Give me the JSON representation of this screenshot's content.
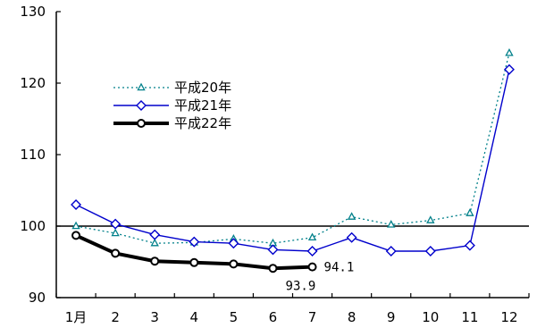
{
  "chart_data": {
    "type": "line",
    "categories": [
      "1月",
      "2",
      "3",
      "4",
      "5",
      "6",
      "7",
      "8",
      "9",
      "10",
      "11",
      "12"
    ],
    "ylim": [
      90,
      130
    ],
    "yticks": [
      "90",
      "100",
      "110",
      "120",
      "130"
    ],
    "reference_line": 100,
    "grid": false,
    "legend_placement": "top-left",
    "series": [
      {
        "name": "平成20年",
        "color": "#00808a",
        "style": "dotted",
        "marker": "triangle",
        "values": [
          100.0,
          99.0,
          97.6,
          97.7,
          98.2,
          97.6,
          98.4,
          101.3,
          100.2,
          100.8,
          101.8,
          124.2
        ]
      },
      {
        "name": "平成21年",
        "color": "#0000cc",
        "style": "solid",
        "marker": "diamond",
        "values": [
          103.0,
          100.3,
          98.8,
          97.8,
          97.6,
          96.7,
          96.5,
          98.4,
          96.5,
          96.5,
          97.3,
          121.9
        ]
      },
      {
        "name": "平成22年",
        "color": "#000000",
        "style": "bold",
        "marker": "circle",
        "values": [
          98.7,
          96.2,
          95.1,
          94.9,
          94.7,
          94.1,
          94.3,
          null,
          null,
          null,
          null,
          null
        ]
      }
    ],
    "annotations": [
      {
        "text": "94.1",
        "x": "7"
      },
      {
        "text": "93.9",
        "x": "7"
      }
    ]
  }
}
